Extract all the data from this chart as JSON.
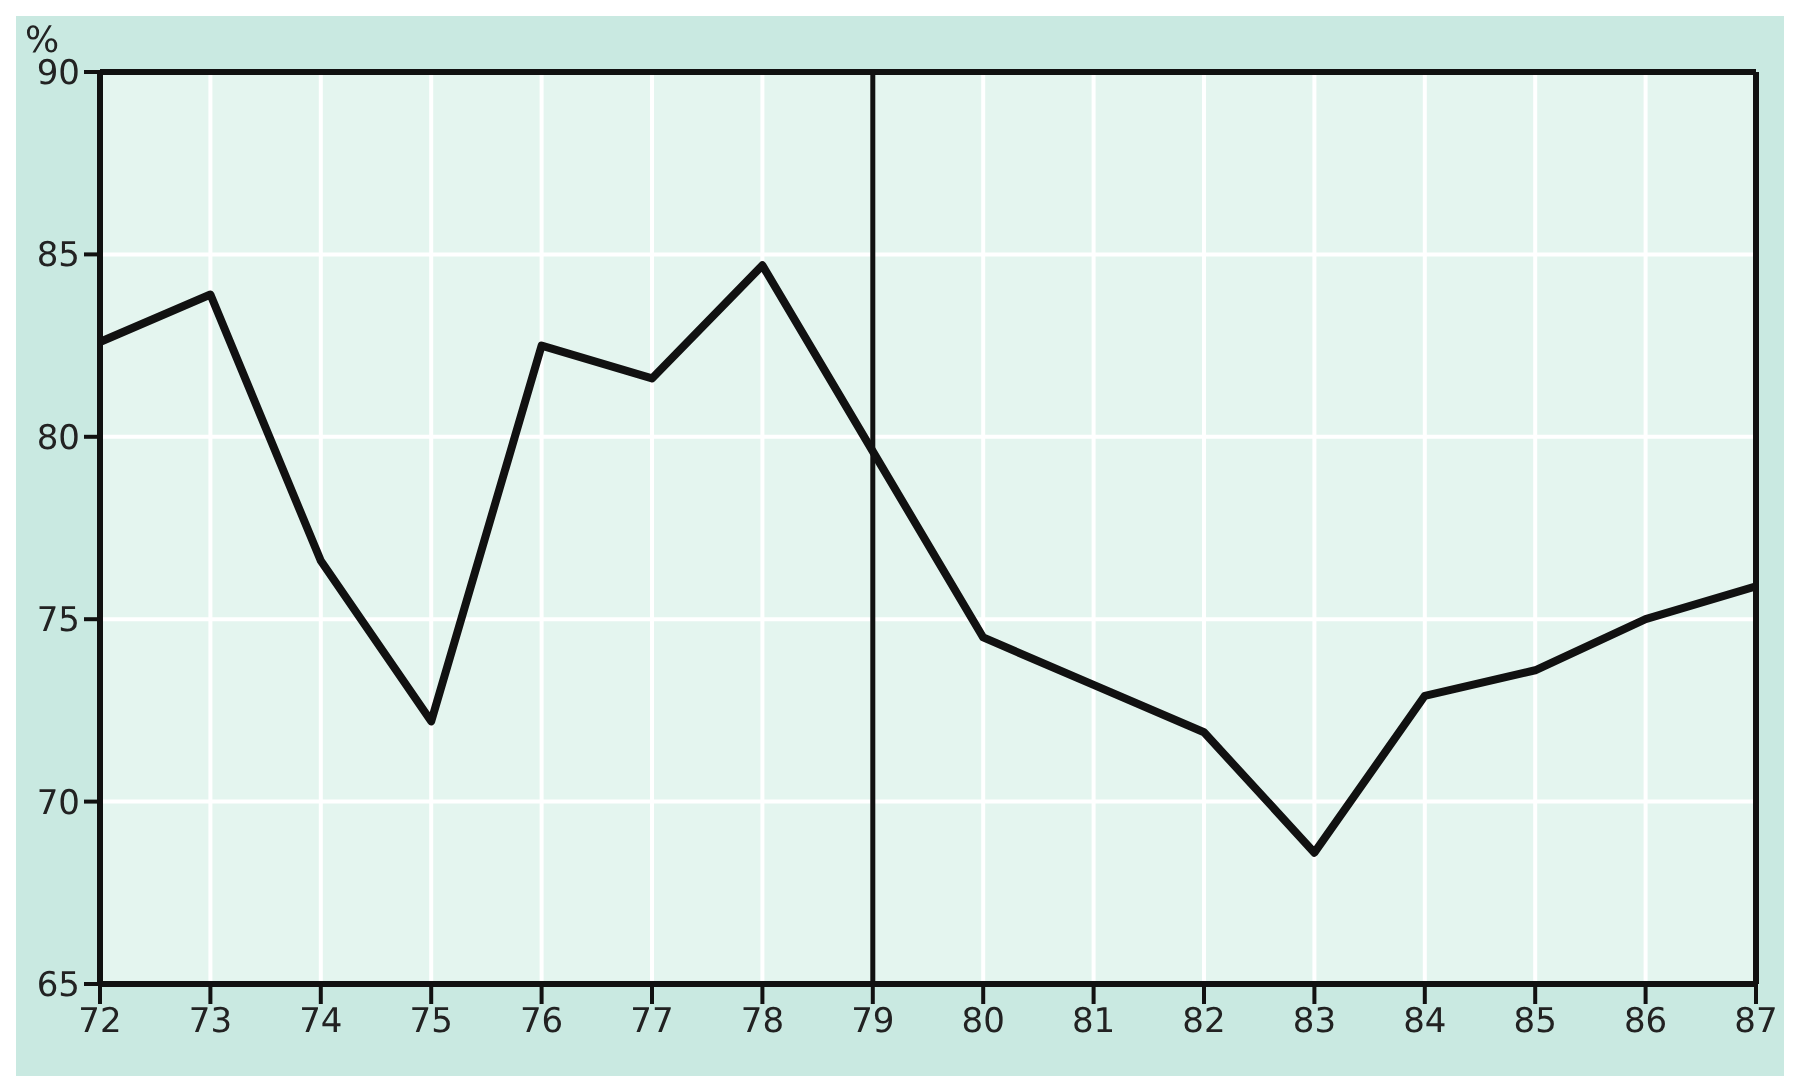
{
  "chart_data": {
    "type": "line",
    "ylabel": "%",
    "x": [
      72,
      73,
      74,
      75,
      76,
      77,
      78,
      79,
      80,
      81,
      82,
      83,
      84,
      85,
      86,
      87
    ],
    "series": [
      {
        "color": "#111111",
        "values": [
          82.6,
          83.9,
          76.6,
          72.2,
          82.5,
          81.6,
          84.7,
          79.6,
          74.5,
          73.2,
          71.9,
          68.6,
          72.9,
          73.6,
          75.0,
          75.9
        ]
      }
    ],
    "xlim": [
      72,
      87
    ],
    "xticks": [
      72,
      73,
      74,
      75,
      76,
      77,
      78,
      79,
      80,
      81,
      82,
      83,
      84,
      85,
      86,
      87
    ],
    "ylim": [
      65,
      90
    ],
    "yticks": [
      65,
      70,
      75,
      80,
      85,
      90
    ],
    "grid": true,
    "marker": "none",
    "line_style": "solid",
    "ref_lines": [
      {
        "axis": "x",
        "value": 79,
        "color": "#111111"
      }
    ]
  }
}
